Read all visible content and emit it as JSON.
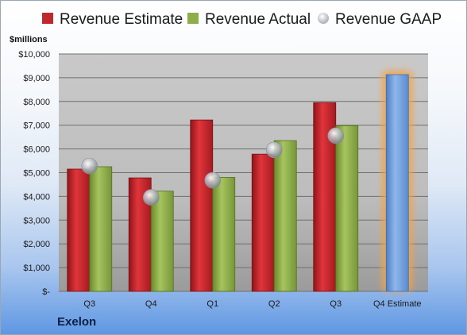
{
  "chart_data": {
    "type": "bar",
    "categories": [
      "Q3",
      "Q4",
      "Q1",
      "Q2",
      "Q3",
      "Q4 Estimate"
    ],
    "series": [
      {
        "name": "Revenue Estimate",
        "values": [
          5150,
          4780,
          7220,
          5780,
          7950,
          9130
        ],
        "color": "#c0282d"
      },
      {
        "name": "Revenue Actual",
        "values": [
          5250,
          4220,
          4800,
          6350,
          6980,
          null
        ],
        "color": "#8fae4a"
      },
      {
        "name": "Revenue GAAP",
        "values": [
          5280,
          3960,
          4680,
          5960,
          6560,
          null
        ],
        "color": "#b8bcc2"
      }
    ],
    "estimate_color": "#6f9fdc",
    "estimate_glow": "#f4a347",
    "ylabel": "$millions",
    "ylim": [
      0,
      10000
    ],
    "yticks": [
      0,
      1000,
      2000,
      3000,
      4000,
      5000,
      6000,
      7000,
      8000,
      9000,
      10000
    ],
    "ytick_labels": [
      "$-",
      "$1,000",
      "$2,000",
      "$3,000",
      "$4,000",
      "$5,000",
      "$6,000",
      "$7,000",
      "$8,000",
      "$9,000",
      "$10,000"
    ],
    "grid": true,
    "legend": "top",
    "company": "Exelon"
  }
}
